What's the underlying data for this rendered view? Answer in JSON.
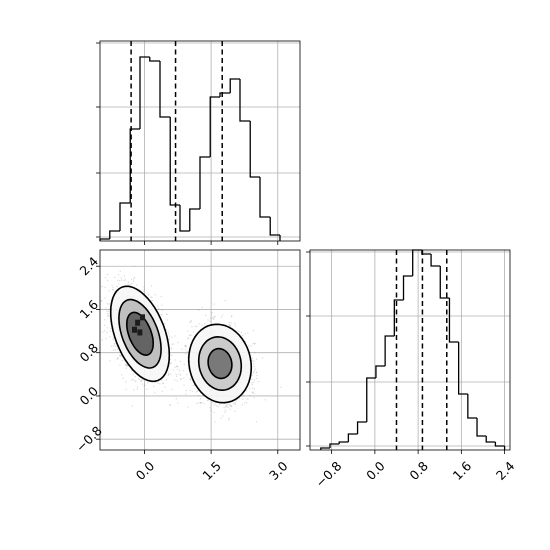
{
  "figure": {
    "type": "corner-plot",
    "colors": {
      "line": "#000000",
      "grid": "#b0b0b0",
      "scatter": "#808080",
      "background": "#ffffff"
    }
  },
  "chart_data": [
    {
      "panel": "top-left",
      "type": "histogram",
      "title": "",
      "xlabel": "",
      "ylabel": "",
      "xlim": [
        -1.0,
        3.5
      ],
      "ylim": [
        0,
        1.0
      ],
      "grid": true,
      "bin_edges": [
        -1.0,
        -0.78,
        -0.55,
        -0.32,
        -0.1,
        0.12,
        0.35,
        0.58,
        0.8,
        1.02,
        1.25,
        1.48,
        1.7,
        1.93,
        2.15,
        2.38,
        2.6,
        2.83,
        3.05
      ],
      "counts": [
        0.01,
        0.05,
        0.19,
        0.56,
        0.92,
        0.9,
        0.62,
        0.18,
        0.05,
        0.16,
        0.42,
        0.72,
        0.74,
        0.81,
        0.6,
        0.32,
        0.12,
        0.03
      ],
      "quantile_lines": [
        -0.3,
        0.7,
        1.75
      ],
      "xticks": [
        {
          "value": 0.0,
          "label": ""
        },
        {
          "value": 1.5,
          "label": ""
        },
        {
          "value": 3.0,
          "label": ""
        }
      ],
      "yticks": [
        0.02,
        0.34,
        0.67,
        0.99
      ]
    },
    {
      "panel": "bottom-left",
      "type": "scatter",
      "title": "",
      "xlabel": "",
      "ylabel": "",
      "xlim": [
        -1.0,
        3.5
      ],
      "ylim": [
        -1.0,
        2.7
      ],
      "grid": true,
      "clusters": [
        {
          "center": [
            -0.1,
            1.15
          ],
          "sd": [
            0.3,
            0.4
          ],
          "rho": -0.45,
          "n": 2200
        },
        {
          "center": [
            1.7,
            0.6
          ],
          "sd": [
            0.32,
            0.33
          ],
          "rho": -0.1,
          "n": 2200
        }
      ],
      "contour_levels": [
        {
          "region": "cluster-1",
          "scale": 1.0,
          "fill": "#f7f7f7"
        },
        {
          "region": "cluster-1",
          "scale": 0.72,
          "fill": "#b9b9b9"
        },
        {
          "region": "cluster-1",
          "scale": 0.45,
          "fill": "#5a5a5a"
        },
        {
          "region": "cluster-2",
          "scale": 1.0,
          "fill": "#f7f7f7"
        },
        {
          "region": "cluster-2",
          "scale": 0.68,
          "fill": "#c6c6c6"
        },
        {
          "region": "cluster-2",
          "scale": 0.38,
          "fill": "#707070"
        }
      ],
      "xticks": [
        {
          "value": 0.0,
          "label": "0.0"
        },
        {
          "value": 1.5,
          "label": "1.5"
        },
        {
          "value": 3.0,
          "label": "3.0"
        }
      ],
      "yticks": [
        {
          "value": -0.8,
          "label": "−0.8"
        },
        {
          "value": 0.0,
          "label": "0.0"
        },
        {
          "value": 0.8,
          "label": "0.8"
        },
        {
          "value": 1.6,
          "label": "1.6"
        },
        {
          "value": 2.4,
          "label": "2.4"
        }
      ]
    },
    {
      "panel": "bottom-right",
      "type": "histogram",
      "title": "",
      "xlabel": "",
      "ylabel": "",
      "xlim": [
        -1.2,
        2.5
      ],
      "ylim": [
        0,
        1.0
      ],
      "grid": true,
      "bin_edges": [
        -1.0,
        -0.83,
        -0.66,
        -0.49,
        -0.32,
        -0.15,
        0.02,
        0.19,
        0.36,
        0.53,
        0.7,
        0.87,
        1.04,
        1.21,
        1.38,
        1.55,
        1.72,
        1.89,
        2.06,
        2.23,
        2.4
      ],
      "counts": [
        0.01,
        0.03,
        0.04,
        0.08,
        0.14,
        0.36,
        0.42,
        0.57,
        0.75,
        0.87,
        1.0,
        0.98,
        0.92,
        0.76,
        0.54,
        0.28,
        0.16,
        0.07,
        0.04,
        0.02
      ],
      "quantile_lines": [
        0.4,
        0.88,
        1.33
      ],
      "xticks": [
        {
          "value": -0.8,
          "label": "−0.8"
        },
        {
          "value": 0.0,
          "label": "0.0"
        },
        {
          "value": 0.8,
          "label": "0.8"
        },
        {
          "value": 1.6,
          "label": "1.6"
        },
        {
          "value": 2.4,
          "label": "2.4"
        }
      ],
      "yticks": [
        0.02,
        0.34,
        0.67,
        0.99
      ]
    }
  ]
}
